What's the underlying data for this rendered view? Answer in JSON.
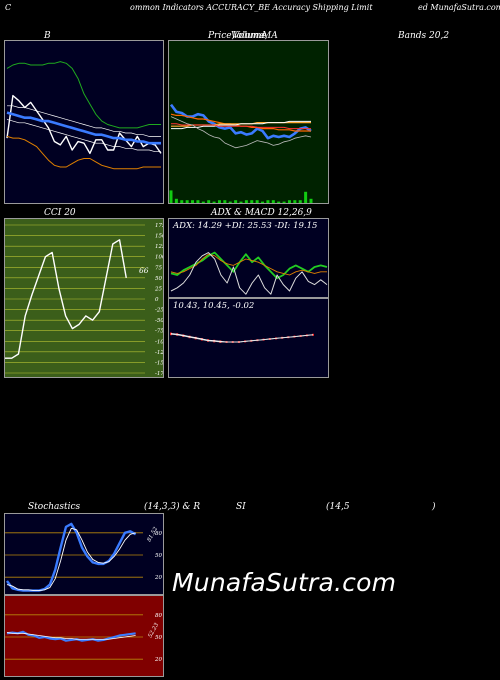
{
  "header": {
    "left": "C",
    "mid": "ommon  Indicators ACCURACY_BE Accuracy Shipping Limit",
    "right": "ed MunafaSutra.com"
  },
  "titles": {
    "b": "B",
    "price_a": "Price,",
    "price_b": "Volume,",
    "price_c": "Volume",
    "price_d": "MA",
    "bands": "Bands 20,2",
    "cci": "CCI 20",
    "adx": "ADX  & MACD 12,26,9",
    "stoch": "Stochastics",
    "stoch_params": "(14,3,3) & R",
    "rsi": "SI",
    "rsi_params": "(14,5",
    "rsi_close": ")"
  },
  "watermark": "MunafaSutra.com",
  "colors": {
    "navy": "#000022",
    "green": "#002200",
    "olive": "#3b5e1a",
    "red": "#800000",
    "blue": "#3a7bff",
    "orange": "#e08000",
    "white": "#ffffff",
    "lime": "#22cc22"
  },
  "chart_data": [
    {
      "name": "Bollinger Bands",
      "type": "line",
      "x": [
        1,
        2,
        3,
        4,
        5,
        6,
        7,
        8,
        9,
        10,
        11,
        12,
        13,
        14,
        15,
        16,
        17,
        18,
        19,
        20,
        21,
        22,
        23,
        24,
        25,
        26,
        27
      ],
      "series": [
        {
          "values": [
            37,
            62,
            59,
            55,
            58,
            53,
            48,
            43,
            35,
            33,
            38,
            30,
            35,
            34,
            28,
            36,
            36,
            30,
            30,
            40,
            36,
            32,
            38,
            32,
            34,
            33,
            28
          ]
        },
        {
          "values": [
            52,
            51,
            50,
            49,
            49,
            48,
            47,
            47,
            46,
            45,
            44,
            43,
            42,
            41,
            40,
            39,
            39,
            38,
            37,
            37,
            36,
            36,
            35,
            35,
            34,
            34,
            34
          ]
        },
        {
          "values": [
            56,
            56,
            55,
            55,
            54,
            53,
            52,
            51,
            50,
            49,
            48,
            47,
            46,
            45,
            44,
            43,
            43,
            42,
            41,
            41,
            40,
            40,
            39,
            39,
            38,
            38,
            38
          ]
        },
        {
          "values": [
            48,
            47,
            46,
            46,
            45,
            44,
            43,
            42,
            41,
            40,
            39,
            38,
            37,
            36,
            35,
            34,
            34,
            33,
            32,
            32,
            31,
            31,
            30,
            30,
            30,
            29,
            29
          ]
        },
        {
          "values": [
            78,
            80,
            81,
            81,
            80,
            80,
            80,
            81,
            81,
            82,
            81,
            78,
            72,
            63,
            57,
            51,
            47,
            45,
            44,
            43,
            43,
            43,
            43,
            44,
            45,
            45,
            45
          ]
        },
        {
          "values": [
            38,
            37,
            37,
            36,
            34,
            32,
            28,
            24,
            21,
            20,
            20,
            22,
            24,
            25,
            25,
            23,
            21,
            20,
            19,
            19,
            19,
            19,
            19,
            20,
            20,
            20,
            20
          ]
        }
      ]
    },
    {
      "name": "Price Volume MA",
      "type": "line",
      "x": [
        1,
        2,
        3,
        4,
        5,
        6,
        7,
        8,
        9,
        10,
        11,
        12,
        13,
        14,
        15,
        16,
        17,
        18,
        19,
        20,
        21,
        22,
        23,
        24,
        25,
        26,
        27
      ],
      "series": [
        {
          "values": [
            72,
            66,
            65,
            62,
            62,
            64,
            63,
            58,
            56,
            53,
            52,
            53,
            48,
            49,
            47,
            48,
            52,
            50,
            44,
            46,
            45,
            46,
            45,
            48,
            52,
            53,
            50
          ]
        },
        {
          "values": [
            64,
            63,
            63,
            62,
            61,
            60,
            60,
            59,
            58,
            57,
            56,
            56,
            55,
            54,
            54,
            53,
            53,
            52,
            52,
            52,
            51,
            51,
            51,
            50,
            50,
            50,
            50
          ]
        },
        {
          "values": [
            54,
            54,
            54,
            54,
            55,
            55,
            55,
            55,
            55,
            56,
            56,
            56,
            56,
            56,
            56,
            56,
            57,
            57,
            57,
            57,
            57,
            57,
            57,
            57,
            57,
            57,
            57
          ]
        },
        {
          "values": [
            52,
            52,
            52,
            53,
            53,
            53,
            54,
            54,
            54,
            55,
            55,
            55,
            55,
            56,
            56,
            56,
            56,
            56,
            57,
            57,
            57,
            57,
            58,
            58,
            58,
            58,
            58
          ]
        },
        {
          "values": [
            56,
            56,
            55,
            55,
            55,
            55,
            55,
            55,
            55,
            54,
            54,
            54,
            54,
            54,
            54,
            54,
            53,
            53,
            53,
            53,
            53,
            53,
            52,
            52,
            52,
            52,
            52
          ]
        },
        {
          "values": [
            62,
            60,
            58,
            56,
            55,
            52,
            50,
            47,
            45,
            44,
            40,
            38,
            36,
            37,
            38,
            40,
            42,
            41,
            40,
            38,
            39,
            41,
            42,
            44,
            45,
            46,
            45
          ]
        }
      ],
      "volume": [
        9,
        3,
        2,
        2,
        2,
        2,
        1,
        2,
        1,
        2,
        2,
        1,
        2,
        1,
        2,
        2,
        2,
        1,
        2,
        2,
        1,
        1,
        2,
        2,
        2,
        8,
        3
      ]
    },
    {
      "name": "CCI 20",
      "type": "line",
      "ylim": [
        -175,
        175
      ],
      "ticks": [
        175,
        150,
        125,
        100,
        75,
        50,
        25,
        0,
        -25,
        -50,
        -75,
        -100,
        -125,
        -150,
        -175
      ],
      "x": [
        1,
        2,
        3,
        4,
        5,
        6,
        7,
        8,
        9,
        10,
        11,
        12,
        13,
        14,
        15,
        16,
        17,
        18,
        19,
        20
      ],
      "values": [
        -140,
        -140,
        -130,
        -40,
        10,
        55,
        100,
        110,
        25,
        -40,
        -70,
        -60,
        -40,
        -50,
        -30,
        50,
        130,
        140,
        50,
        null
      ],
      "last_label": "66"
    },
    {
      "name": "ADX",
      "type": "line",
      "label": "ADX: 14.29  +DI: 25.53  -DI: 19.15",
      "x": [
        1,
        2,
        3,
        4,
        5,
        6,
        7,
        8,
        9,
        10,
        11,
        12,
        13,
        14,
        15,
        16,
        17,
        18,
        19,
        20,
        21,
        22,
        23,
        24,
        25,
        26
      ],
      "series": [
        {
          "values": [
            21,
            20,
            23,
            25,
            27,
            29,
            32,
            34,
            30,
            26,
            22,
            28,
            33,
            28,
            31,
            26,
            22,
            18,
            20,
            24,
            26,
            24,
            22,
            25,
            26,
            25
          ]
        },
        {
          "values": [
            22,
            21,
            22,
            24,
            26,
            30,
            33,
            32,
            29,
            27,
            26,
            28,
            30,
            29,
            28,
            26,
            24,
            22,
            21,
            20,
            22,
            23,
            22,
            21,
            22,
            22
          ]
        },
        {
          "values": [
            10,
            12,
            15,
            20,
            28,
            32,
            34,
            30,
            20,
            15,
            25,
            12,
            8,
            15,
            20,
            12,
            8,
            20,
            14,
            10,
            18,
            22,
            16,
            14,
            17,
            14
          ]
        }
      ]
    },
    {
      "name": "MACD",
      "type": "line",
      "label": "10.43,  10.45,  -0.02",
      "x": [
        1,
        2,
        3,
        4,
        5,
        6,
        7,
        8,
        9,
        10,
        11,
        12,
        13,
        14,
        15,
        16,
        17,
        18,
        19,
        20,
        21,
        22,
        23,
        24
      ],
      "series": [
        {
          "values": [
            11.4,
            11.3,
            11.1,
            10.9,
            10.7,
            10.5,
            10.3,
            10.2,
            10.1,
            10.0,
            10.0,
            10.0,
            10.1,
            10.2,
            10.3,
            10.4,
            10.5,
            10.6,
            10.7,
            10.8,
            10.9,
            11.0,
            11.1,
            11.2
          ]
        },
        {
          "values": [
            11.3,
            11.2,
            11.0,
            10.8,
            10.6,
            10.4,
            10.2,
            10.1,
            10.0,
            10.0,
            10.0,
            10.0,
            10.1,
            10.2,
            10.3,
            10.4,
            10.5,
            10.6,
            10.7,
            10.8,
            10.9,
            11.0,
            11.1,
            11.2
          ]
        }
      ]
    },
    {
      "name": "Stochastics",
      "type": "line",
      "ylim": [
        0,
        100
      ],
      "ticks": [
        80,
        50,
        20
      ],
      "x": [
        1,
        2,
        3,
        4,
        5,
        6,
        7,
        8,
        9,
        10,
        11,
        12,
        13,
        14,
        15,
        16,
        17,
        18,
        19,
        20,
        21,
        22,
        23,
        24,
        25,
        26
      ],
      "series": [
        {
          "values": [
            15,
            5,
            3,
            2,
            2,
            2,
            2,
            4,
            10,
            30,
            60,
            88,
            92,
            80,
            60,
            48,
            40,
            38,
            38,
            42,
            52,
            66,
            80,
            82,
            78,
            null
          ]
        },
        {
          "values": [
            10,
            8,
            4,
            3,
            3,
            2,
            2,
            3,
            6,
            18,
            42,
            70,
            86,
            84,
            70,
            54,
            44,
            40,
            39,
            41,
            48,
            58,
            70,
            78,
            80,
            null
          ]
        }
      ],
      "last_label": "81.52"
    },
    {
      "name": "RSI",
      "type": "line",
      "ylim": [
        0,
        100
      ],
      "ticks": [
        80,
        50,
        20
      ],
      "x": [
        1,
        2,
        3,
        4,
        5,
        6,
        7,
        8,
        9,
        10,
        11,
        12,
        13,
        14,
        15,
        16,
        17,
        18,
        19,
        20,
        21,
        22,
        23,
        24,
        25,
        26
      ],
      "series": [
        {
          "values": [
            55,
            56,
            55,
            57,
            53,
            52,
            49,
            50,
            48,
            47,
            48,
            45,
            46,
            47,
            45,
            46,
            47,
            45,
            46,
            48,
            50,
            52,
            53,
            54,
            55,
            null
          ]
        },
        {
          "values": [
            56,
            55,
            55,
            55,
            54,
            53,
            52,
            51,
            50,
            49,
            49,
            48,
            48,
            47,
            47,
            47,
            47,
            47,
            47,
            47,
            48,
            49,
            50,
            51,
            52,
            null
          ]
        }
      ],
      "last_label": "52.23"
    }
  ]
}
